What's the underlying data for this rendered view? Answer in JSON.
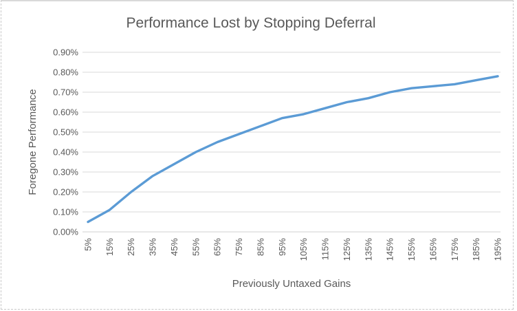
{
  "chart_data": {
    "type": "line",
    "title": "Performance Lost by Stopping Deferral",
    "xlabel": "Previously Untaxed Gains",
    "ylabel": "Foregone Performance",
    "categories": [
      "5%",
      "15%",
      "25%",
      "35%",
      "45%",
      "55%",
      "65%",
      "75%",
      "85%",
      "95%",
      "105%",
      "115%",
      "125%",
      "135%",
      "145%",
      "155%",
      "165%",
      "175%",
      "185%",
      "195%"
    ],
    "series": [
      {
        "name": "Foregone Performance",
        "values_pct": [
          0.05,
          0.11,
          0.2,
          0.28,
          0.34,
          0.4,
          0.45,
          0.49,
          0.53,
          0.57,
          0.59,
          0.62,
          0.65,
          0.67,
          0.7,
          0.72,
          0.73,
          0.74,
          0.76,
          0.78
        ]
      }
    ],
    "y_ticks": [
      "0.00%",
      "0.10%",
      "0.20%",
      "0.30%",
      "0.40%",
      "0.50%",
      "0.60%",
      "0.70%",
      "0.80%",
      "0.90%"
    ],
    "ylim_pct": [
      0,
      0.9
    ],
    "grid": "horizontal",
    "legend": "none",
    "colors": {
      "line": "#5B9BD5",
      "text": "#595959",
      "gridline": "#D9D9D9",
      "axis_line": "#D0D0D0",
      "border": "#C8C8C8",
      "background": "#FFFFFF"
    }
  }
}
